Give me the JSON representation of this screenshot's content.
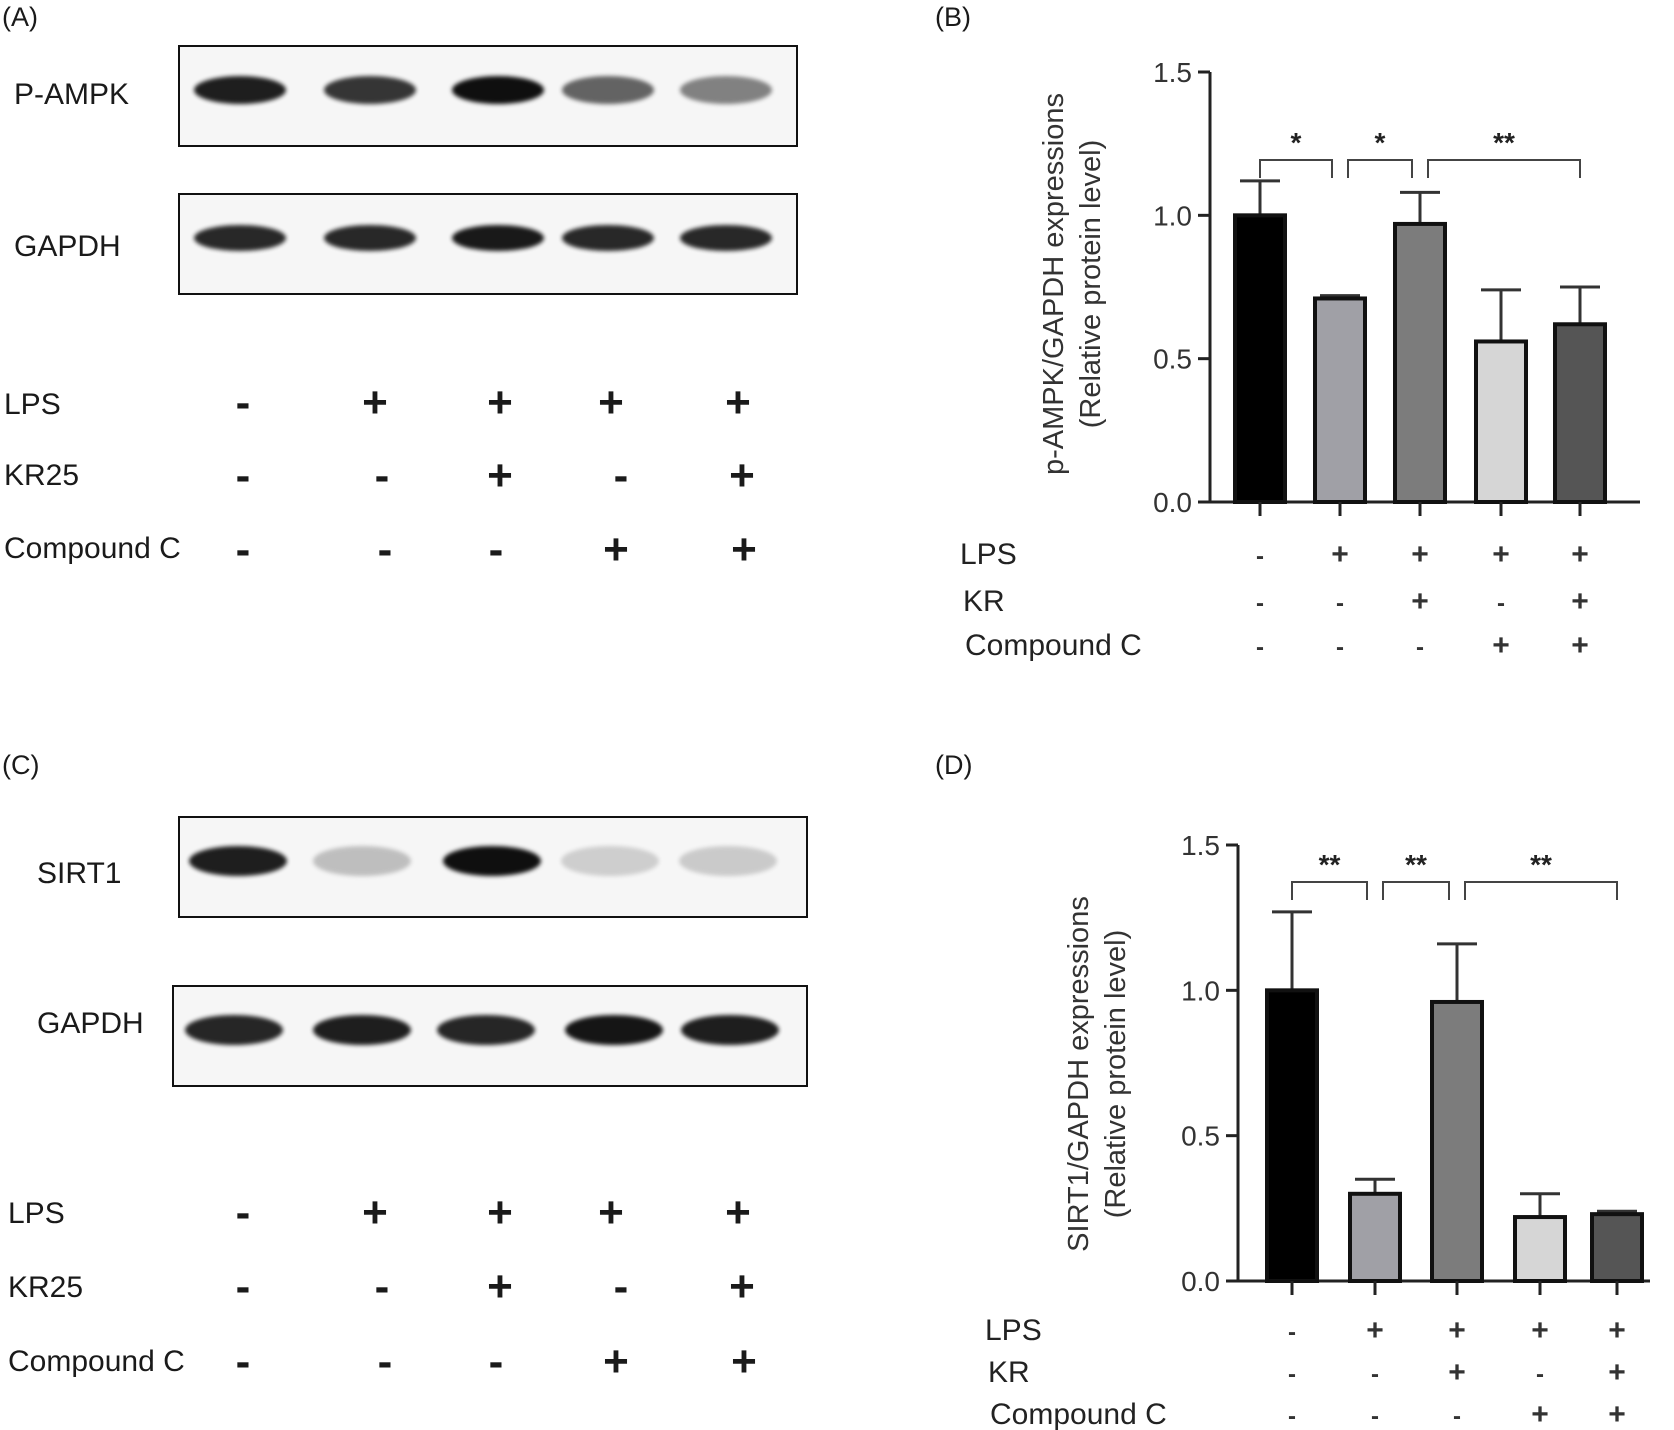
{
  "panels": {
    "A": {
      "letter": "(A)",
      "blots": [
        {
          "label": "P-AMPK",
          "intensities": [
            0.95,
            0.88,
            1.0,
            0.72,
            0.6
          ]
        },
        {
          "label": "GAPDH",
          "intensities": [
            0.92,
            0.92,
            0.97,
            0.92,
            0.92
          ]
        }
      ],
      "conditions": [
        {
          "label": "LPS",
          "signs": [
            "-",
            "+",
            "+",
            "+",
            "+"
          ]
        },
        {
          "label": "KR25",
          "signs": [
            "-",
            "-",
            "+",
            "-",
            "+"
          ]
        },
        {
          "label": "Compound C",
          "signs": [
            "-",
            "-",
            "-",
            "+",
            "+"
          ]
        }
      ]
    },
    "B": {
      "letter": "(B)",
      "conditions": [
        {
          "label": "LPS",
          "signs": [
            "-",
            "+",
            "+",
            "+",
            "+"
          ]
        },
        {
          "label": "KR",
          "signs": [
            "-",
            "-",
            "+",
            "-",
            "+"
          ]
        },
        {
          "label": "Compound C",
          "signs": [
            "-",
            "-",
            "-",
            "+",
            "+"
          ]
        }
      ]
    },
    "C": {
      "letter": "(C)",
      "blots": [
        {
          "label": "SIRT1",
          "intensities": [
            0.95,
            0.3,
            1.0,
            0.2,
            0.22
          ]
        },
        {
          "label": "GAPDH",
          "intensities": [
            0.93,
            0.95,
            0.93,
            0.98,
            0.95
          ]
        }
      ],
      "conditions": [
        {
          "label": "LPS",
          "signs": [
            "-",
            "+",
            "+",
            "+",
            "+"
          ]
        },
        {
          "label": "KR25",
          "signs": [
            "-",
            "-",
            "+",
            "-",
            "+"
          ]
        },
        {
          "label": "Compound C",
          "signs": [
            "-",
            "-",
            "-",
            "+",
            "+"
          ]
        }
      ]
    },
    "D": {
      "letter": "(D)",
      "conditions": [
        {
          "label": "LPS",
          "signs": [
            "-",
            "+",
            "+",
            "+",
            "+"
          ]
        },
        {
          "label": "KR",
          "signs": [
            "-",
            "-",
            "+",
            "-",
            "+"
          ]
        },
        {
          "label": "Compound C",
          "signs": [
            "-",
            "-",
            "-",
            "+",
            "+"
          ]
        }
      ]
    }
  },
  "chart_data": [
    {
      "type": "bar",
      "panel": "B",
      "ylabel_line1": "p-AMPK/GAPDH expressions",
      "ylabel_line2": "(Relative protein level)",
      "ylim": [
        0,
        1.5
      ],
      "yticks": [
        "0.0",
        "0.5",
        "1.0",
        "1.5"
      ],
      "values": [
        1.0,
        0.71,
        0.97,
        0.56,
        0.62
      ],
      "errors": [
        0.12,
        0.01,
        0.11,
        0.18,
        0.13
      ],
      "colors": [
        "#000000",
        "#a0a0a6",
        "#7c7c7c",
        "#d6d6d6",
        "#555555"
      ],
      "significance": [
        {
          "from": 0,
          "to": 1,
          "label": "*"
        },
        {
          "from": 1,
          "to": 2,
          "label": "*"
        },
        {
          "from": 2,
          "to": 4,
          "label": "**"
        }
      ]
    },
    {
      "type": "bar",
      "panel": "D",
      "ylabel_line1": "SIRT1/GAPDH expressions",
      "ylabel_line2": "(Relative protein level)",
      "ylim": [
        0,
        1.5
      ],
      "yticks": [
        "0.0",
        "0.5",
        "1.0",
        "1.5"
      ],
      "values": [
        1.0,
        0.3,
        0.96,
        0.22,
        0.23
      ],
      "errors": [
        0.27,
        0.05,
        0.2,
        0.08,
        0.01
      ],
      "colors": [
        "#000000",
        "#a0a0a6",
        "#7c7c7c",
        "#d6d6d6",
        "#555555"
      ],
      "significance": [
        {
          "from": 0,
          "to": 1,
          "label": "**"
        },
        {
          "from": 1,
          "to": 2,
          "label": "**"
        },
        {
          "from": 2,
          "to": 4,
          "label": "**"
        }
      ]
    }
  ]
}
